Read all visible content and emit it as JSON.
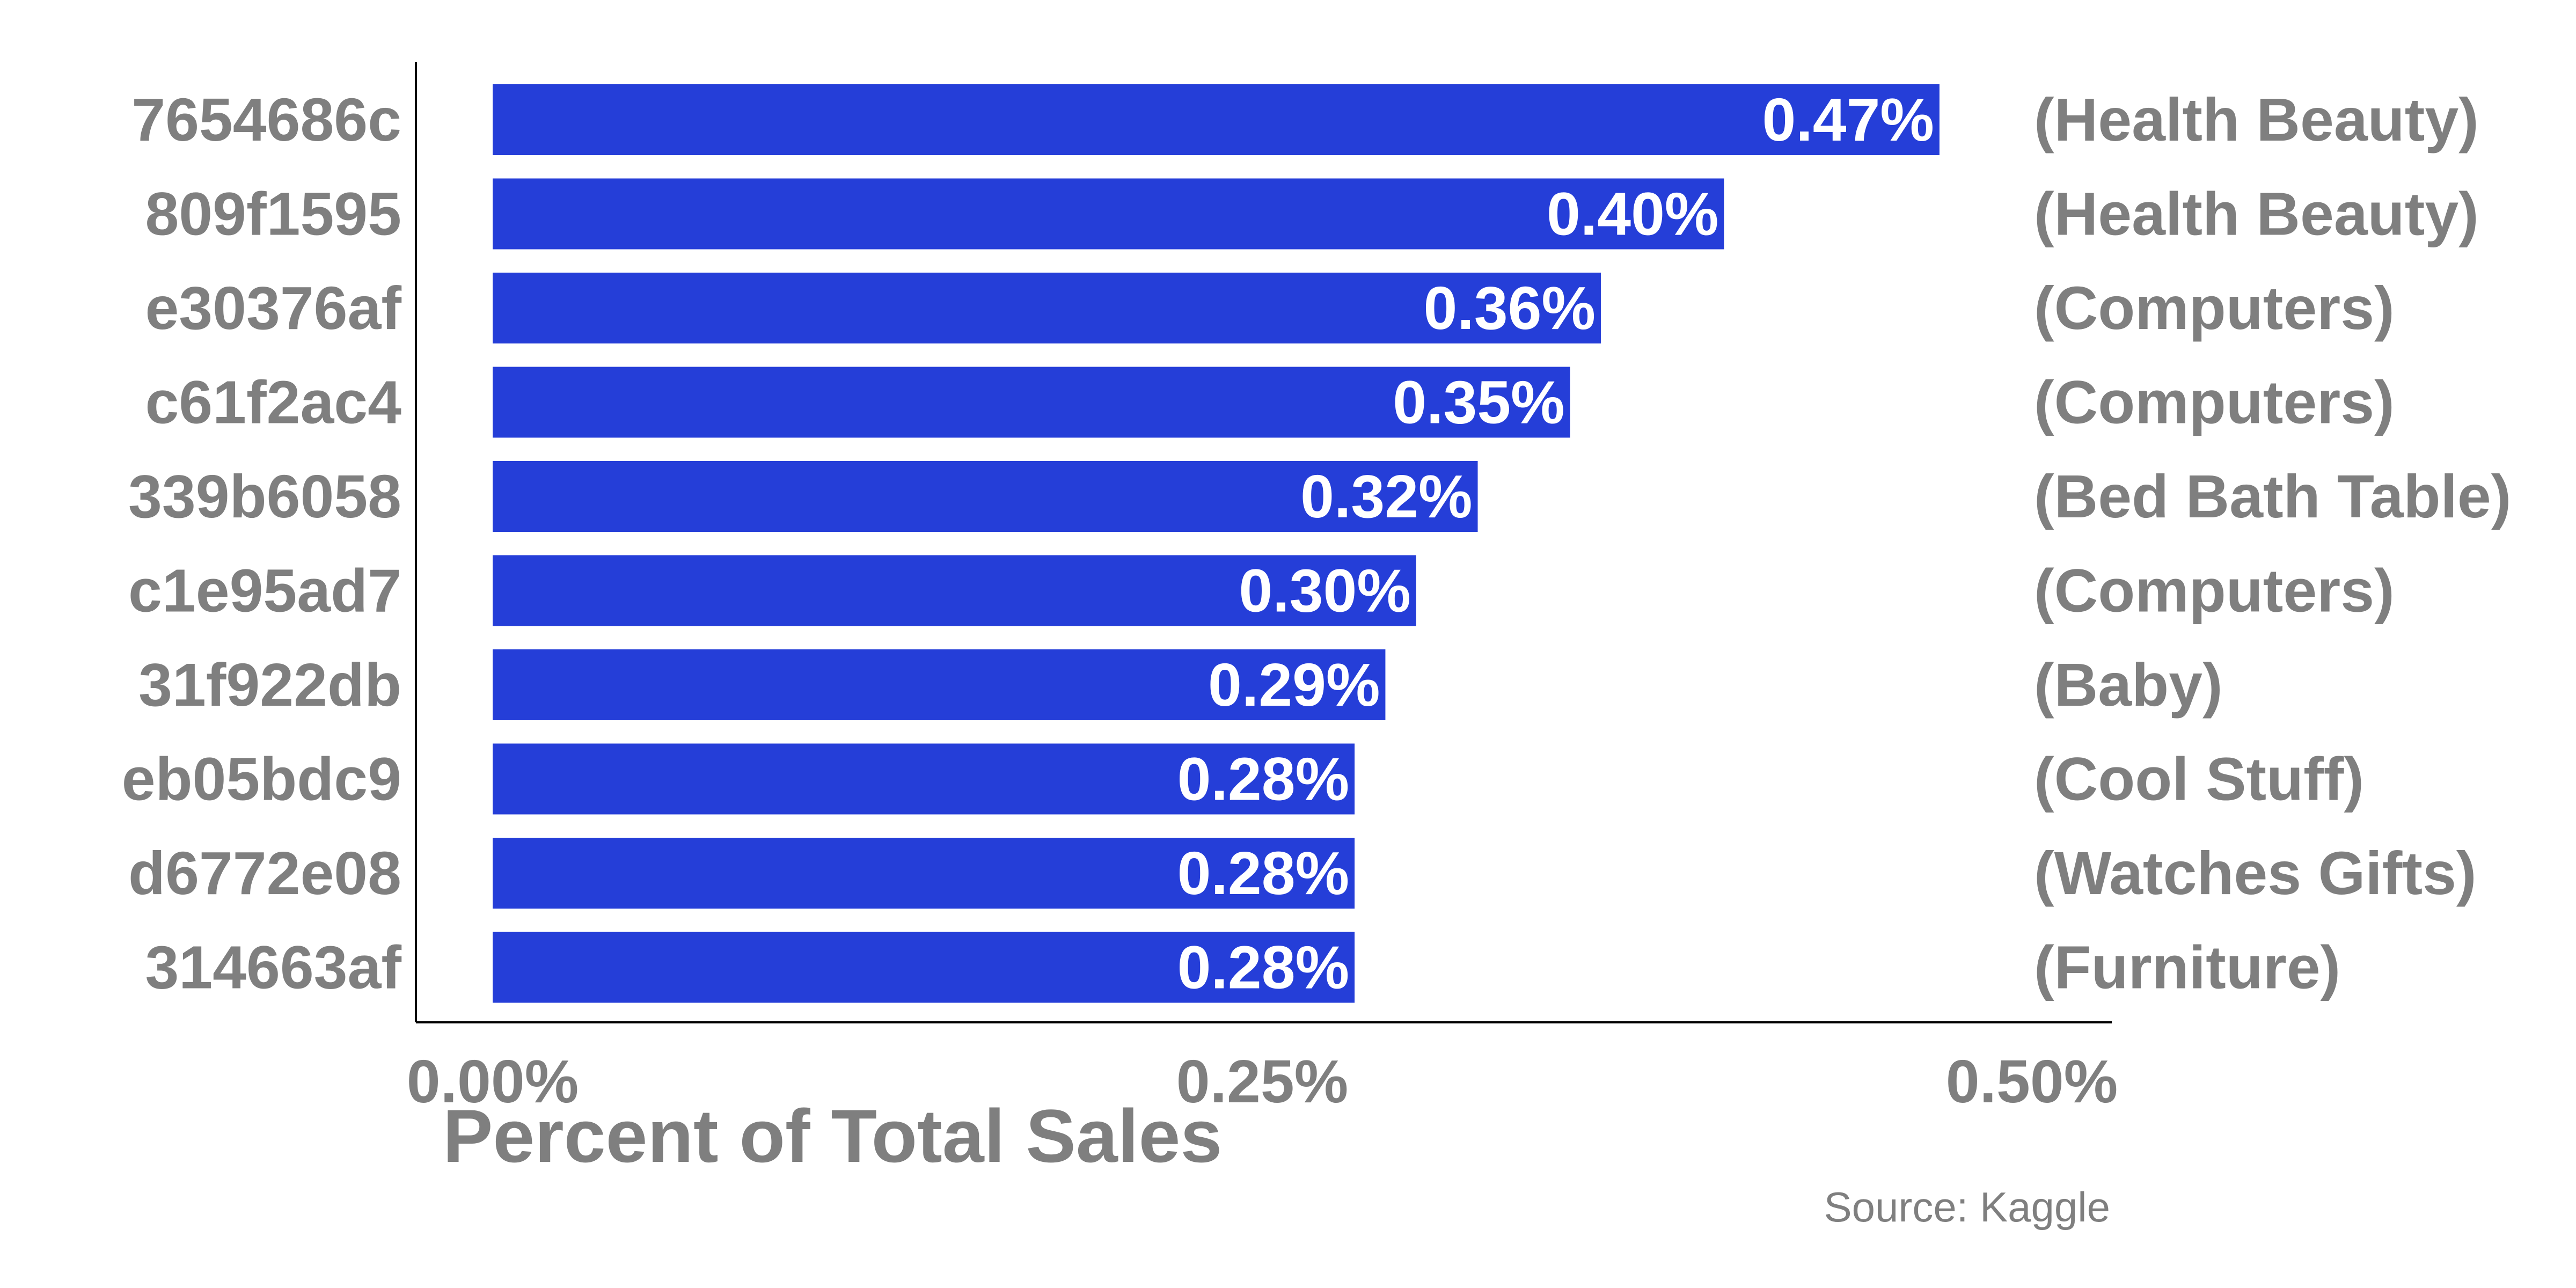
{
  "chart_data": {
    "type": "bar",
    "orientation": "horizontal",
    "categories": [
      "7654686c",
      "809f1595",
      "e30376af",
      "c61f2ac4",
      "339b6058",
      "c1e95ad7",
      "31f922db",
      "eb05bdc9",
      "d6772e08",
      "314663af"
    ],
    "values": [
      0.47,
      0.4,
      0.36,
      0.35,
      0.32,
      0.3,
      0.29,
      0.28,
      0.28,
      0.28
    ],
    "data_labels": [
      "0.47%",
      "0.40%",
      "0.36%",
      "0.35%",
      "0.32%",
      "0.30%",
      "0.29%",
      "0.28%",
      "0.28%",
      "0.28%"
    ],
    "group_labels": [
      "(Health Beauty)",
      "(Health Beauty)",
      "(Computers)",
      "(Computers)",
      "(Bed Bath Table)",
      "(Computers)",
      "(Baby)",
      "(Cool Stuff)",
      "(Watches Gifts)",
      "(Furniture)"
    ],
    "xlim": [
      0,
      0.55
    ],
    "x_ticks": [
      0,
      0.25,
      0.5
    ],
    "x_tick_labels": [
      "0.00%",
      "0.25%",
      "0.50%"
    ],
    "xlabel": "Percent of Total Sales",
    "ylabel": "",
    "title": "",
    "caption": "Source: Kaggle",
    "grid": false,
    "legend": "none",
    "bar_color": "#253ed8",
    "label_color": "#7f7f7f",
    "data_label_color": "#ffffff"
  }
}
